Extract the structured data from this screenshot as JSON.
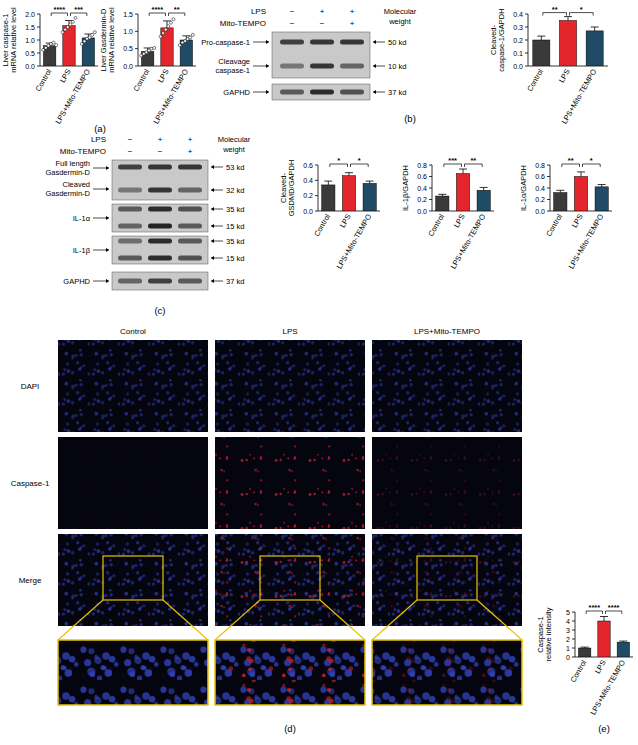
{
  "chart_data": [
    {
      "type": "bar",
      "y_label": "Liver caspase-1\nmRNA relative level",
      "categories": [
        "Control",
        "LPS",
        "LPS+Mito-TEMPO"
      ],
      "values": [
        0.78,
        1.55,
        1.08
      ],
      "errors": [
        0.1,
        0.2,
        0.15
      ],
      "points": [
        [
          0.62,
          0.7,
          0.78,
          0.85,
          0.9,
          0.8
        ],
        [
          1.3,
          1.4,
          1.5,
          1.6,
          1.7,
          1.85
        ],
        [
          0.85,
          0.95,
          1.05,
          1.1,
          1.2,
          1.3
        ]
      ],
      "colors": [
        "#3a3a3a",
        "#e3262b",
        "#1f4b66"
      ],
      "ylim": [
        0,
        2
      ],
      "yticks": [
        {
          "value": 0,
          "label": "0.0"
        },
        {
          "value": 0.5,
          "label": "0.5"
        },
        {
          "value": 1,
          "label": "1.0"
        },
        {
          "value": 1.5,
          "label": "1.5"
        },
        {
          "value": 2,
          "label": "2.0"
        }
      ],
      "significance": [
        {
          "groups": [
            "Control",
            "LPS"
          ],
          "label": "****"
        },
        {
          "groups": [
            "LPS",
            "LPS+Mito-TEMPO"
          ],
          "label": "***"
        }
      ]
    },
    {
      "type": "bar",
      "y_label": "Liver Gasdermin-D\nmRNA relative level",
      "categories": [
        "Control",
        "LPS",
        "LPS+Mito-TEMPO"
      ],
      "values": [
        0.42,
        1.1,
        0.75
      ],
      "errors": [
        0.1,
        0.2,
        0.12
      ],
      "points": [
        [
          0.3,
          0.35,
          0.4,
          0.45,
          0.5,
          0.52
        ],
        [
          0.85,
          0.95,
          1.05,
          1.15,
          1.25,
          1.35
        ],
        [
          0.6,
          0.68,
          0.72,
          0.78,
          0.82,
          0.9
        ]
      ],
      "colors": [
        "#3a3a3a",
        "#e3262b",
        "#1f4b66"
      ],
      "ylim": [
        0,
        1.5
      ],
      "yticks": [
        {
          "value": 0,
          "label": "0.0"
        },
        {
          "value": 0.5,
          "label": "0.5"
        },
        {
          "value": 1,
          "label": "1.0"
        },
        {
          "value": 1.5,
          "label": "1.5"
        }
      ],
      "significance": [
        {
          "groups": [
            "Control",
            "LPS"
          ],
          "label": "****"
        },
        {
          "groups": [
            "LPS",
            "LPS+Mito-TEMPO"
          ],
          "label": "**"
        }
      ]
    },
    {
      "type": "bar",
      "y_label": "Cleaved-\ncaspase-1/GAPDH",
      "categories": [
        "Control",
        "LPS",
        "LPS+Mito-TEMPO"
      ],
      "values": [
        0.2,
        0.35,
        0.27
      ],
      "errors": [
        0.03,
        0.03,
        0.03
      ],
      "colors": [
        "#3a3a3a",
        "#e3262b",
        "#1f4b66"
      ],
      "ylim": [
        0,
        0.4
      ],
      "yticks": [
        {
          "value": 0,
          "label": "0.0"
        },
        0.1,
        0.2,
        0.3,
        0.4
      ],
      "significance": [
        {
          "groups": [
            "Control",
            "LPS"
          ],
          "label": "**"
        },
        {
          "groups": [
            "LPS",
            "LPS+Mito-TEMPO"
          ],
          "label": "*"
        }
      ]
    },
    {
      "type": "bar",
      "y_label": "Cleaved-\nGSDMD/GAPDH",
      "categories": [
        "Control",
        "LPS",
        "LPS+Mito-TEMPO"
      ],
      "values": [
        0.34,
        0.46,
        0.36
      ],
      "errors": [
        0.05,
        0.04,
        0.03
      ],
      "colors": [
        "#3a3a3a",
        "#e3262b",
        "#1f4b66"
      ],
      "ylim": [
        0,
        0.6
      ],
      "yticks": [
        {
          "value": 0,
          "label": "0.0"
        },
        0.2,
        0.4,
        0.6
      ],
      "significance": [
        {
          "groups": [
            "Control",
            "LPS"
          ],
          "label": "*"
        },
        {
          "groups": [
            "LPS",
            "LPS+Mito-TEMPO"
          ],
          "label": "*"
        }
      ]
    },
    {
      "type": "bar",
      "y_label": "IL-1β/GAPDH",
      "categories": [
        "Control",
        "LPS",
        "LPS+Mito-TEMPO"
      ],
      "values": [
        0.26,
        0.65,
        0.36
      ],
      "errors": [
        0.03,
        0.08,
        0.05
      ],
      "colors": [
        "#3a3a3a",
        "#e3262b",
        "#1f4b66"
      ],
      "ylim": [
        0,
        0.8
      ],
      "yticks": [
        {
          "value": 0,
          "label": "0.0"
        },
        0.2,
        0.4,
        0.6,
        0.8
      ],
      "significance": [
        {
          "groups": [
            "Control",
            "LPS"
          ],
          "label": "***"
        },
        {
          "groups": [
            "LPS",
            "LPS+Mito-TEMPO"
          ],
          "label": "**"
        }
      ]
    },
    {
      "type": "bar",
      "y_label": "IL-1α/GAPDH",
      "categories": [
        "Control",
        "LPS",
        "LPS+Mito-TEMPO"
      ],
      "values": [
        0.32,
        0.6,
        0.42
      ],
      "errors": [
        0.04,
        0.08,
        0.04
      ],
      "colors": [
        "#3a3a3a",
        "#e3262b",
        "#1f4b66"
      ],
      "ylim": [
        0,
        0.8
      ],
      "yticks": [
        {
          "value": 0,
          "label": "0.0"
        },
        0.2,
        0.4,
        0.6,
        0.8
      ],
      "significance": [
        {
          "groups": [
            "Control",
            "LPS"
          ],
          "label": "**"
        },
        {
          "groups": [
            "LPS",
            "LPS+Mito-TEMPO"
          ],
          "label": "*"
        }
      ]
    },
    {
      "type": "bar",
      "y_label": "Caspase-1\nrelative intensity",
      "categories": [
        "Control",
        "LPS",
        "LPS+Mito-TEMPO"
      ],
      "values": [
        1,
        4,
        1.65
      ],
      "errors": [
        0.1,
        0.5,
        0.12
      ],
      "colors": [
        "#3a3a3a",
        "#e3262b",
        "#1f4b66"
      ],
      "ylim": [
        0,
        5
      ],
      "yticks": [
        0,
        1,
        2,
        3,
        4,
        5
      ],
      "significance": [
        {
          "groups": [
            "Control",
            "LPS"
          ],
          "label": "****"
        },
        {
          "groups": [
            "LPS",
            "LPS+Mito-TEMPO"
          ],
          "label": "****"
        }
      ]
    }
  ],
  "blots": {
    "b": {
      "conditions": [
        {
          "label": "LPS",
          "signs": [
            "−",
            "+",
            "+"
          ]
        },
        {
          "label": "Mito-TEMPO",
          "signs": [
            "−",
            "−",
            "+"
          ]
        }
      ],
      "mw_header": "Molecular\nweight",
      "left_labels": [
        "Pro-caspase-1",
        "Cleavage\ncaspase-1",
        "GAPHD"
      ],
      "mw_labels": [
        "50 kd",
        "10 kd",
        "37 kd"
      ]
    },
    "c": {
      "conditions": [
        {
          "label": "LPS",
          "signs": [
            "−",
            "+",
            "+"
          ]
        },
        {
          "label": "Mito-TEMPO",
          "signs": [
            "−",
            "−",
            "+"
          ]
        }
      ],
      "mw_header": "Molecular\nweight",
      "left_labels": [
        "Full length\nGasdermin-D",
        "Cleaved\nGasdermin-D",
        "IL-1α",
        "IL-1β",
        "GAPHD"
      ],
      "mw_labels": [
        "53 kd",
        "32 kd",
        "35 kd",
        "15 kd",
        "35 kd",
        "15 kd",
        "37 kd"
      ]
    }
  },
  "microscopy": {
    "columns": [
      "Control",
      "LPS",
      "LPS+Mito-TEMPO"
    ],
    "rows": [
      "DAPI",
      "Caspase-1",
      "Merge"
    ]
  },
  "panel_labels": [
    "(a)",
    "(b)",
    "(c)",
    "(d)",
    "(e)"
  ]
}
